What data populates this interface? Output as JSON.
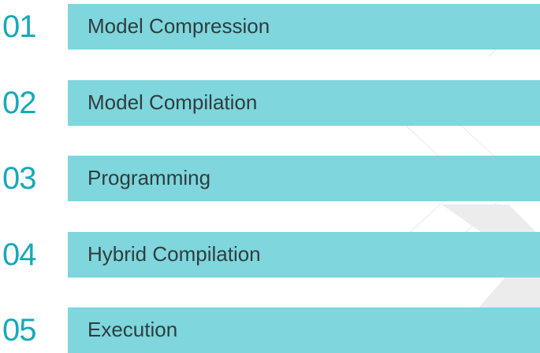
{
  "steps": [
    {
      "number": "01",
      "label": "Model Compression"
    },
    {
      "number": "02",
      "label": "Model Compilation"
    },
    {
      "number": "03",
      "label": "Programming"
    },
    {
      "number": "04",
      "label": "Hybrid Compilation"
    },
    {
      "number": "05",
      "label": "Execution"
    }
  ],
  "colors": {
    "number": "#17a9b8",
    "bar": "#7fd6dd",
    "label": "#2f3d3e",
    "decoration": "#e9eced"
  }
}
